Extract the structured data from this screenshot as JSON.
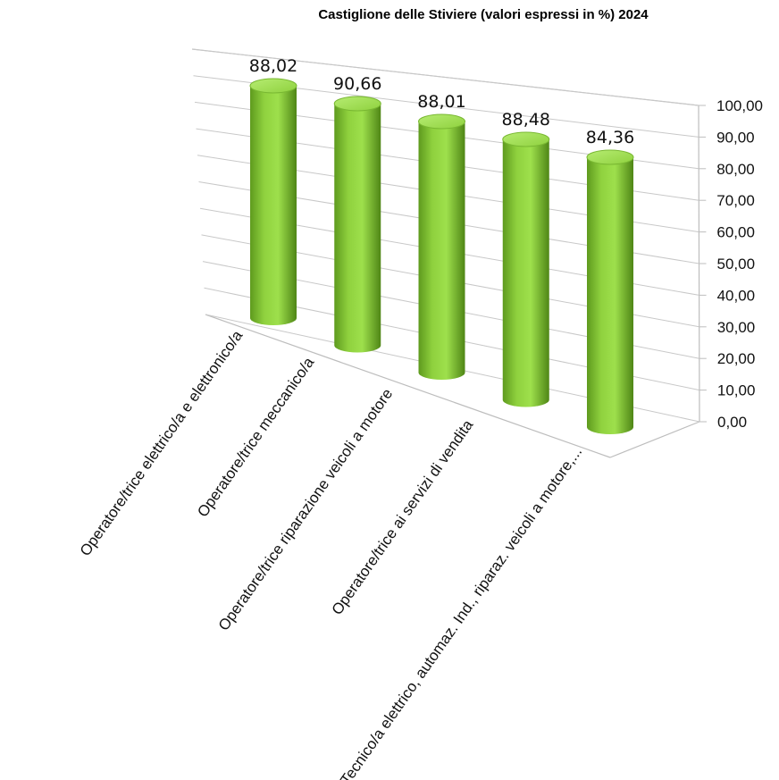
{
  "chart_data": {
    "type": "bar",
    "title": "Castiglione  delle  Stiviere  (valori  espressi  in  %) 2024",
    "categories": [
      "Operatore/trice elettrico/a e elettronico/a",
      "Operatore/trice meccanico/a",
      "Operatore/trice riparazione veicoli a motore",
      "Operatore/trice ai servizi di vendita",
      "Tecnico/a elettrico, automaz. Ind., riparaz. veicoli a motore,..."
    ],
    "values": [
      88.02,
      90.66,
      88.01,
      88.48,
      84.36
    ],
    "value_labels": [
      "88,02",
      "90,66",
      "88,01",
      "88,48",
      "84,36"
    ],
    "yticks": [
      "0,00",
      "10,00",
      "20,00",
      "30,00",
      "40,00",
      "50,00",
      "60,00",
      "70,00",
      "80,00",
      "90,00",
      "100,00"
    ],
    "ylim": [
      0,
      100
    ],
    "bar_shape": "cylinder",
    "bar_color": "#8ccf3c",
    "grid": true,
    "legend": "none"
  }
}
